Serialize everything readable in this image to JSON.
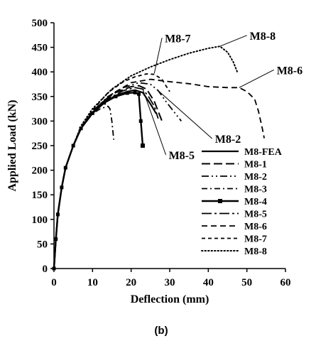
{
  "caption": "(b)",
  "chart_data": {
    "type": "line",
    "title": "",
    "xlabel": "Deflection (mm)",
    "ylabel": "Applied Load (kN)",
    "xlim": [
      0,
      60
    ],
    "ylim": [
      0,
      500
    ],
    "xticks": [
      0,
      10,
      20,
      30,
      40,
      50,
      60
    ],
    "yticks": [
      0,
      50,
      100,
      150,
      200,
      250,
      300,
      350,
      400,
      450,
      500
    ],
    "grid": false,
    "legend_position": "right",
    "series": [
      {
        "name": "M8-FEA",
        "style": "solid",
        "points": [
          [
            0,
            0
          ],
          [
            0.5,
            60
          ],
          [
            1,
            110
          ],
          [
            2,
            165
          ],
          [
            3,
            205
          ],
          [
            5,
            250
          ],
          [
            7,
            285
          ],
          [
            10,
            317
          ],
          [
            13,
            338
          ],
          [
            16,
            352
          ],
          [
            19,
            360
          ],
          [
            21,
            363
          ],
          [
            23,
            358
          ],
          [
            25,
            335
          ],
          [
            26.5,
            315
          ]
        ]
      },
      {
        "name": "M8-1",
        "style": "longdash",
        "points": [
          [
            0,
            0
          ],
          [
            0.5,
            60
          ],
          [
            1,
            110
          ],
          [
            2,
            165
          ],
          [
            3,
            205
          ],
          [
            5,
            250
          ],
          [
            7,
            285
          ],
          [
            10,
            318
          ],
          [
            13,
            342
          ],
          [
            16,
            358
          ],
          [
            20,
            370
          ],
          [
            22,
            372
          ],
          [
            24,
            365
          ],
          [
            26,
            340
          ],
          [
            28,
            300
          ]
        ]
      },
      {
        "name": "M8-2",
        "style": "dashdotdot",
        "points": [
          [
            0,
            0
          ],
          [
            0.5,
            60
          ],
          [
            1,
            110
          ],
          [
            2,
            165
          ],
          [
            3,
            205
          ],
          [
            5,
            250
          ],
          [
            7,
            285
          ],
          [
            10,
            320
          ],
          [
            14,
            350
          ],
          [
            18,
            368
          ],
          [
            22,
            378
          ],
          [
            25,
            375
          ],
          [
            27,
            362
          ],
          [
            29,
            340
          ],
          [
            31,
            320
          ],
          [
            33,
            300
          ]
        ]
      },
      {
        "name": "M8-3",
        "style": "dashdot",
        "points": [
          [
            0,
            0
          ],
          [
            0.5,
            60
          ],
          [
            1,
            110
          ],
          [
            2,
            165
          ],
          [
            3,
            205
          ],
          [
            5,
            250
          ],
          [
            7,
            285
          ],
          [
            10,
            315
          ],
          [
            12,
            325
          ],
          [
            14,
            330
          ],
          [
            14.5,
            325
          ],
          [
            15,
            300
          ],
          [
            15.5,
            262
          ]
        ]
      },
      {
        "name": "M8-4",
        "style": "marker",
        "points": [
          [
            0,
            0
          ],
          [
            0.5,
            60
          ],
          [
            1,
            110
          ],
          [
            2,
            165
          ],
          [
            3,
            205
          ],
          [
            5,
            250
          ],
          [
            7,
            285
          ],
          [
            10,
            316
          ],
          [
            13,
            337
          ],
          [
            16,
            350
          ],
          [
            19,
            357
          ],
          [
            21,
            358
          ],
          [
            22,
            355
          ],
          [
            22.5,
            300
          ],
          [
            23,
            250
          ]
        ]
      },
      {
        "name": "M8-5",
        "style": "longdashdot",
        "points": [
          [
            0,
            0
          ],
          [
            0.5,
            60
          ],
          [
            1,
            110
          ],
          [
            2,
            165
          ],
          [
            3,
            205
          ],
          [
            5,
            250
          ],
          [
            7,
            285
          ],
          [
            10,
            318
          ],
          [
            14,
            345
          ],
          [
            18,
            362
          ],
          [
            21,
            368
          ],
          [
            23,
            365
          ],
          [
            24.5,
            350
          ],
          [
            26,
            330
          ],
          [
            27,
            305
          ]
        ]
      },
      {
        "name": "M8-6",
        "style": "dash",
        "points": [
          [
            0,
            0
          ],
          [
            0.5,
            60
          ],
          [
            1,
            110
          ],
          [
            2,
            165
          ],
          [
            3,
            205
          ],
          [
            5,
            250
          ],
          [
            7,
            285
          ],
          [
            10,
            320
          ],
          [
            15,
            355
          ],
          [
            20,
            378
          ],
          [
            25,
            385
          ],
          [
            30,
            380
          ],
          [
            35,
            376
          ],
          [
            40,
            370
          ],
          [
            45,
            368
          ],
          [
            48,
            368
          ],
          [
            50,
            360
          ],
          [
            52,
            345
          ],
          [
            53,
            320
          ],
          [
            54,
            285
          ],
          [
            54.5,
            265
          ]
        ]
      },
      {
        "name": "M8-7",
        "style": "shortdash",
        "points": [
          [
            0,
            0
          ],
          [
            0.5,
            60
          ],
          [
            1,
            110
          ],
          [
            2,
            165
          ],
          [
            3,
            205
          ],
          [
            5,
            250
          ],
          [
            7,
            287
          ],
          [
            10,
            322
          ],
          [
            14,
            358
          ],
          [
            18,
            380
          ],
          [
            21,
            390
          ],
          [
            24,
            396
          ],
          [
            26,
            395
          ],
          [
            28,
            385
          ],
          [
            29,
            372
          ],
          [
            30,
            360
          ]
        ]
      },
      {
        "name": "M8-8",
        "style": "dotted",
        "points": [
          [
            0,
            0
          ],
          [
            0.5,
            60
          ],
          [
            1,
            110
          ],
          [
            2,
            165
          ],
          [
            3,
            205
          ],
          [
            5,
            250
          ],
          [
            7,
            290
          ],
          [
            10,
            325
          ],
          [
            15,
            365
          ],
          [
            20,
            392
          ],
          [
            25,
            410
          ],
          [
            30,
            425
          ],
          [
            35,
            438
          ],
          [
            40,
            448
          ],
          [
            43,
            452
          ],
          [
            45,
            440
          ],
          [
            46.5,
            420
          ],
          [
            47.5,
            400
          ]
        ]
      }
    ],
    "annotations": [
      {
        "text": "M8-7",
        "target_series": "M8-7",
        "anchor": [
          26,
          397
        ],
        "label_at": [
          28,
          475
        ]
      },
      {
        "text": "M8-8",
        "target_series": "M8-8",
        "anchor": [
          43,
          452
        ],
        "label_at": [
          50,
          480
        ]
      },
      {
        "text": "M8-6",
        "target_series": "M8-6",
        "anchor": [
          48,
          368
        ],
        "label_at": [
          57,
          410
        ]
      },
      {
        "text": "M8-2",
        "target_series": "M8-2",
        "anchor": [
          27,
          362
        ],
        "label_at": [
          41,
          270
        ]
      },
      {
        "text": "M8-5",
        "target_series": "M8-5",
        "anchor": [
          23,
          365
        ],
        "label_at": [
          29,
          237
        ]
      }
    ]
  }
}
